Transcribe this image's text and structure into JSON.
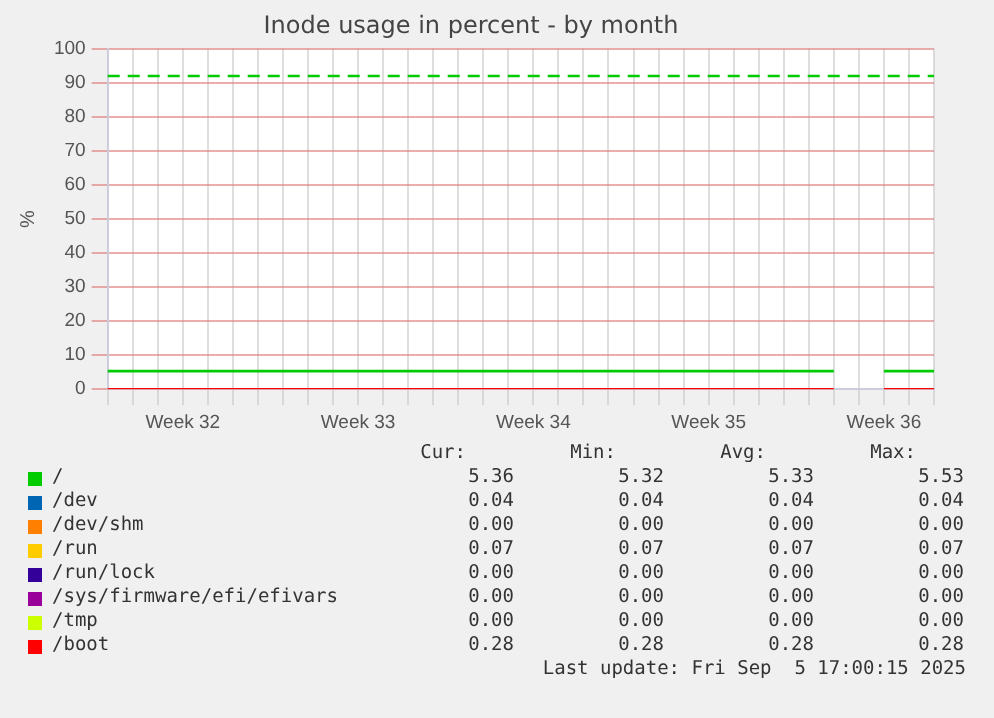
{
  "chart_data": {
    "type": "line",
    "title": "Inode usage in percent - by month",
    "ylabel": "%",
    "categories": [
      null,
      null,
      null,
      "Week 32",
      null,
      null,
      null,
      null,
      null,
      null,
      "Week 33",
      null,
      null,
      null,
      null,
      null,
      null,
      "Week 34",
      null,
      null,
      null,
      null,
      null,
      null,
      "Week 35",
      null,
      null,
      null,
      null,
      null,
      null,
      "Week 36",
      null,
      null
    ],
    "ylim": [
      0,
      100
    ],
    "yticks": [
      0,
      10,
      20,
      30,
      40,
      50,
      60,
      70,
      80,
      90,
      100
    ],
    "series": [
      {
        "name": "/",
        "color": "#00cc00",
        "values": [
          5.3,
          5.3,
          5.3,
          5.3,
          5.3,
          5.3,
          5.3,
          5.3,
          5.3,
          5.3,
          5.3,
          5.3,
          5.3,
          5.3,
          5.3,
          5.3,
          5.3,
          5.3,
          5.3,
          5.3,
          5.3,
          5.3,
          5.3,
          5.3,
          5.3,
          5.3,
          5.3,
          5.3,
          5.3,
          5.3,
          null,
          5.3,
          5.3,
          5.3
        ]
      },
      {
        "name": "/dev",
        "color": "#0066b3",
        "values": [
          null,
          null,
          null,
          null,
          null,
          null,
          null,
          null,
          null,
          null,
          null,
          null,
          null,
          null,
          null,
          null,
          null,
          null,
          null,
          null,
          null,
          null,
          null,
          null,
          null,
          null,
          null,
          null,
          null,
          null,
          null,
          null,
          null,
          null
        ]
      },
      {
        "name": "/dev/shm",
        "color": "#ff8000",
        "values": [
          null,
          null,
          null,
          null,
          null,
          null,
          null,
          null,
          null,
          null,
          null,
          null,
          null,
          null,
          null,
          null,
          null,
          null,
          null,
          null,
          null,
          null,
          null,
          null,
          null,
          null,
          null,
          null,
          null,
          null,
          null,
          null,
          null,
          null
        ]
      },
      {
        "name": "/run",
        "color": "#ffcc00",
        "values": [
          null,
          null,
          null,
          null,
          null,
          null,
          null,
          null,
          null,
          null,
          null,
          null,
          null,
          null,
          null,
          null,
          null,
          null,
          null,
          null,
          null,
          null,
          null,
          null,
          null,
          null,
          null,
          null,
          null,
          null,
          null,
          null,
          null,
          null
        ]
      },
      {
        "name": "/run/lock",
        "color": "#330099",
        "values": [
          null,
          null,
          null,
          null,
          null,
          null,
          null,
          null,
          null,
          null,
          null,
          null,
          null,
          null,
          null,
          null,
          null,
          null,
          null,
          null,
          null,
          null,
          null,
          null,
          null,
          null,
          null,
          null,
          null,
          null,
          null,
          null,
          null,
          null
        ]
      },
      {
        "name": "/sys/firmware/efi/efivars",
        "color": "#990099",
        "values": [
          null,
          null,
          null,
          null,
          null,
          null,
          null,
          null,
          null,
          null,
          null,
          null,
          null,
          null,
          null,
          null,
          null,
          null,
          null,
          null,
          null,
          null,
          null,
          null,
          null,
          null,
          null,
          null,
          null,
          null,
          null,
          null,
          null,
          null
        ]
      },
      {
        "name": "/tmp",
        "color": "#ccff00",
        "values": [
          null,
          null,
          null,
          null,
          null,
          null,
          null,
          null,
          null,
          null,
          null,
          null,
          null,
          null,
          null,
          null,
          null,
          null,
          null,
          null,
          null,
          null,
          null,
          null,
          null,
          null,
          null,
          null,
          null,
          null,
          null,
          null,
          null,
          null
        ]
      },
      {
        "name": "/boot",
        "color": "#ff0000",
        "values": [
          0,
          0,
          0,
          0,
          0,
          0,
          0,
          0,
          0,
          0,
          0,
          0,
          0,
          0,
          0,
          0,
          0,
          0,
          0,
          0,
          0,
          0,
          0,
          0,
          0,
          0,
          0,
          0,
          0,
          0,
          null,
          0,
          0,
          0
        ]
      }
    ],
    "ref_lines": [
      {
        "axis": "y",
        "value": 92,
        "color": "#00cc00",
        "line_style": "dashed"
      }
    ],
    "annotations": [
      "Cur:",
      "Min:",
      "Avg:",
      "Max:",
      "5.36",
      "5.32",
      "5.33",
      "5.53",
      "0.04",
      "0.04",
      "0.04",
      "0.04",
      "0.00",
      "0.00",
      "0.00",
      "0.00",
      "0.07",
      "0.07",
      "0.07",
      "0.07",
      "0.00",
      "0.00",
      "0.00",
      "0.00",
      "0.00",
      "0.00",
      "0.00",
      "0.00",
      "0.00",
      "0.00",
      "0.00",
      "0.00",
      "0.28",
      "0.28",
      "0.28",
      "0.28",
      "Last update: Fri Sep  5 17:00:15 2025"
    ],
    "grid": true,
    "legend": "bottom",
    "marker": "none",
    "line_style": "solid"
  }
}
